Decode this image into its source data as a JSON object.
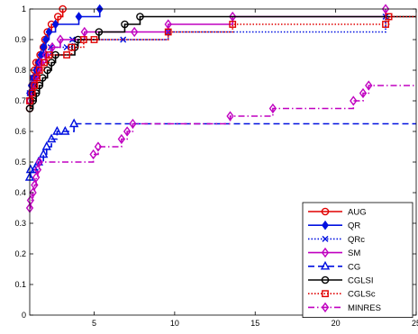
{
  "chart_data": {
    "type": "line",
    "step": true,
    "title": "",
    "xlabel": "",
    "ylabel": "",
    "xlim": [
      1,
      25
    ],
    "ylim": [
      0,
      1
    ],
    "xticks": [
      5,
      10,
      15,
      20,
      25
    ],
    "yticks": [
      0,
      0.1,
      0.2,
      0.3,
      0.4,
      0.5,
      0.6,
      0.7,
      0.8,
      0.9,
      1
    ],
    "ytick_labels": [
      "0",
      "0.1",
      "0.2",
      "0.3",
      "0.4",
      "0.5",
      "0.6",
      "0.7",
      "0.8",
      "0.9",
      "1"
    ],
    "grid": false,
    "legend_position": "lower-right",
    "series": [
      {
        "name": "AUG",
        "color": "#e00000",
        "dash": "solid",
        "marker": "circle",
        "points": [
          [
            1,
            0.675
          ],
          [
            1.05,
            0.7
          ],
          [
            1.1,
            0.725
          ],
          [
            1.15,
            0.75
          ],
          [
            1.25,
            0.775
          ],
          [
            1.3,
            0.8
          ],
          [
            1.4,
            0.825
          ],
          [
            1.55,
            0.825
          ],
          [
            1.65,
            0.85
          ],
          [
            1.85,
            0.875
          ],
          [
            1.95,
            0.9
          ],
          [
            2.1,
            0.925
          ],
          [
            2.35,
            0.95
          ],
          [
            2.75,
            0.975
          ],
          [
            3.05,
            1.0
          ]
        ]
      },
      {
        "name": "QR",
        "color": "#0010e0",
        "dash": "solid",
        "marker": "diamond-filled",
        "points": [
          [
            1,
            0.725
          ],
          [
            1.1,
            0.75
          ],
          [
            1.25,
            0.775
          ],
          [
            1.4,
            0.8
          ],
          [
            1.55,
            0.825
          ],
          [
            1.7,
            0.85
          ],
          [
            1.85,
            0.875
          ],
          [
            2,
            0.9
          ],
          [
            2.2,
            0.925
          ],
          [
            2.6,
            0.95
          ],
          [
            4.05,
            0.975
          ],
          [
            5.35,
            1.0
          ]
        ]
      },
      {
        "name": "QRc",
        "color": "#0010e0",
        "dash": "dotted",
        "marker": "x",
        "points": [
          [
            1,
            0.725
          ],
          [
            1.2,
            0.775
          ],
          [
            1.45,
            0.8
          ],
          [
            1.6,
            0.825
          ],
          [
            1.9,
            0.85
          ],
          [
            2.3,
            0.875
          ],
          [
            3.3,
            0.875
          ],
          [
            3.65,
            0.9
          ],
          [
            6.8,
            0.9
          ],
          [
            9.6,
            0.925
          ],
          [
            23.1,
            0.975
          ]
        ]
      },
      {
        "name": "SM",
        "color": "#c000c0",
        "dash": "solid",
        "marker": "diamond",
        "points": [
          [
            1,
            0.7
          ],
          [
            1.1,
            0.725
          ],
          [
            1.25,
            0.75
          ],
          [
            1.4,
            0.775
          ],
          [
            1.55,
            0.8
          ],
          [
            1.7,
            0.825
          ],
          [
            2,
            0.85
          ],
          [
            2.4,
            0.875
          ],
          [
            2.9,
            0.9
          ],
          [
            4.4,
            0.925
          ],
          [
            7.5,
            0.925
          ],
          [
            9.6,
            0.95
          ],
          [
            13.6,
            0.975
          ],
          [
            23.1,
            1.0
          ]
        ]
      },
      {
        "name": "CG",
        "color": "#0010e0",
        "dash": "dashed",
        "marker": "triangle",
        "points": [
          [
            1,
            0.45
          ],
          [
            1.05,
            0.475
          ],
          [
            1.3,
            0.475
          ],
          [
            1.55,
            0.5
          ],
          [
            1.85,
            0.525
          ],
          [
            2.05,
            0.55
          ],
          [
            2.35,
            0.575
          ],
          [
            2.7,
            0.6
          ],
          [
            3.2,
            0.6
          ],
          [
            3.75,
            0.625
          ],
          [
            25,
            0.625
          ]
        ]
      },
      {
        "name": "CGLSI",
        "color": "#000000",
        "dash": "solid",
        "marker": "circle",
        "points": [
          [
            1,
            0.675
          ],
          [
            1.2,
            0.7
          ],
          [
            1.4,
            0.725
          ],
          [
            1.6,
            0.75
          ],
          [
            1.8,
            0.775
          ],
          [
            2.1,
            0.8
          ],
          [
            2.35,
            0.825
          ],
          [
            2.6,
            0.85
          ],
          [
            3.8,
            0.875
          ],
          [
            4,
            0.9
          ],
          [
            5.3,
            0.925
          ],
          [
            6.9,
            0.95
          ],
          [
            7.85,
            0.975
          ],
          [
            25,
            0.975
          ]
        ]
      },
      {
        "name": "CGLSc",
        "color": "#e00000",
        "dash": "dotted",
        "marker": "square",
        "points": [
          [
            1,
            0.7
          ],
          [
            1.15,
            0.725
          ],
          [
            1.3,
            0.75
          ],
          [
            1.45,
            0.775
          ],
          [
            1.6,
            0.8
          ],
          [
            1.9,
            0.825
          ],
          [
            2.2,
            0.85
          ],
          [
            3.3,
            0.85
          ],
          [
            3.6,
            0.875
          ],
          [
            4.35,
            0.9
          ],
          [
            5,
            0.9
          ],
          [
            9.6,
            0.925
          ],
          [
            13.6,
            0.95
          ],
          [
            23.1,
            0.95
          ],
          [
            23.3,
            0.975
          ],
          [
            25,
            0.975
          ]
        ]
      },
      {
        "name": "MINRES",
        "color": "#c000c0",
        "dash": "dashdot",
        "marker": "diamond",
        "points": [
          [
            1,
            0.35
          ],
          [
            1.05,
            0.375
          ],
          [
            1.2,
            0.4
          ],
          [
            1.3,
            0.425
          ],
          [
            1.4,
            0.45
          ],
          [
            1.5,
            0.475
          ],
          [
            1.6,
            0.5
          ],
          [
            4.95,
            0.525
          ],
          [
            5.25,
            0.55
          ],
          [
            6.7,
            0.575
          ],
          [
            7.05,
            0.6
          ],
          [
            7.4,
            0.625
          ],
          [
            13.45,
            0.65
          ],
          [
            16.1,
            0.675
          ],
          [
            21.1,
            0.7
          ],
          [
            21.7,
            0.725
          ],
          [
            22.05,
            0.75
          ],
          [
            25,
            0.75
          ]
        ]
      }
    ]
  }
}
